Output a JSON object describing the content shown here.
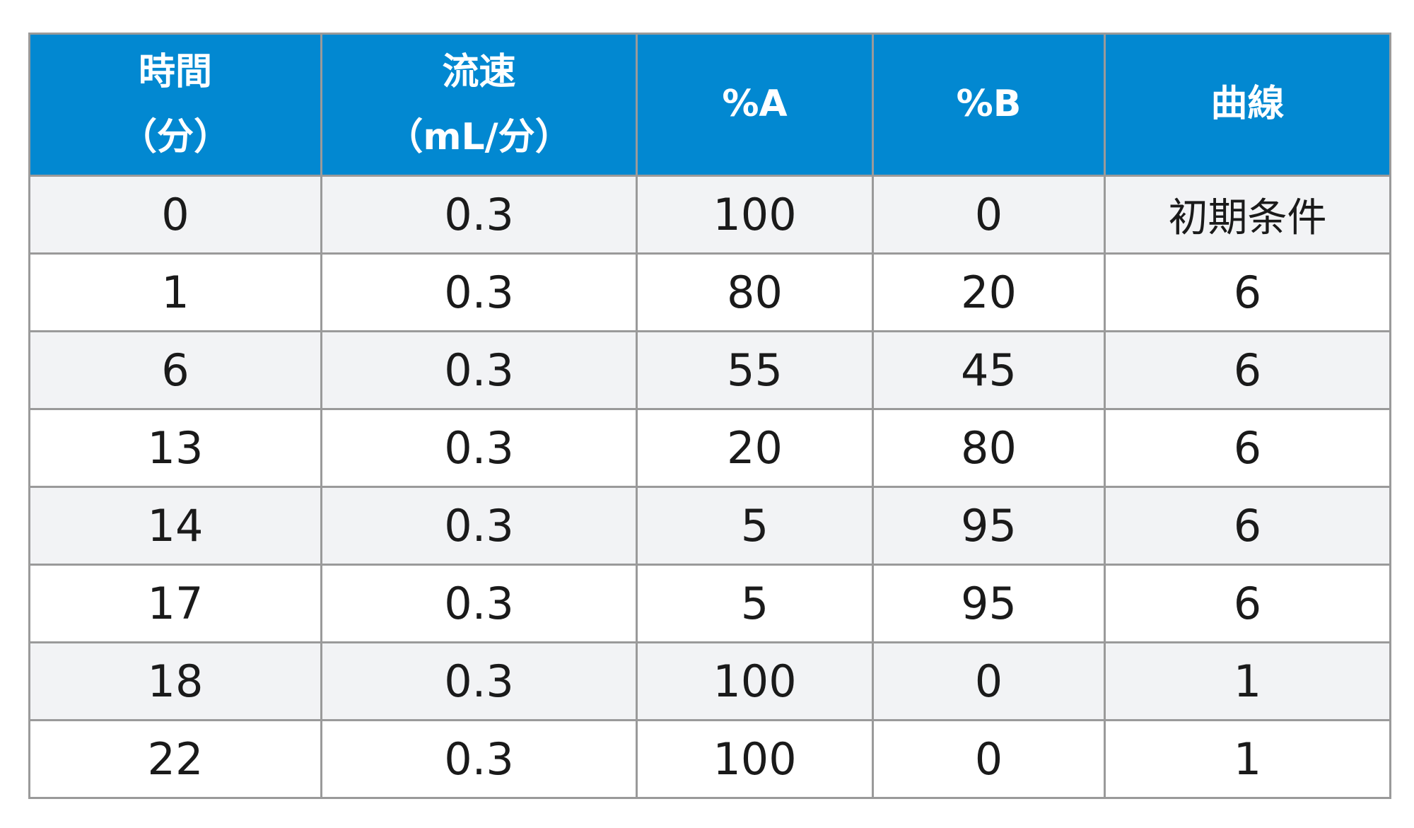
{
  "table": {
    "headers": [
      "時間\n（分）",
      "流速\n（mL/分）",
      "%A",
      "%B",
      "曲線"
    ],
    "rows": [
      [
        "0",
        "0.3",
        "100",
        "0",
        "初期条件"
      ],
      [
        "1",
        "0.3",
        "80",
        "20",
        "6"
      ],
      [
        "6",
        "0.3",
        "55",
        "45",
        "6"
      ],
      [
        "13",
        "0.3",
        "20",
        "80",
        "6"
      ],
      [
        "14",
        "0.3",
        "5",
        "95",
        "6"
      ],
      [
        "17",
        "0.3",
        "5",
        "95",
        "6"
      ],
      [
        "18",
        "0.3",
        "100",
        "0",
        "1"
      ],
      [
        "22",
        "0.3",
        "100",
        "0",
        "1"
      ]
    ]
  },
  "colors": {
    "header_background": "#0288d1",
    "header_text": "#ffffff",
    "row_background_shaded": "#f2f3f5",
    "row_background_plain": "#ffffff",
    "border": "#9a9a9a"
  }
}
